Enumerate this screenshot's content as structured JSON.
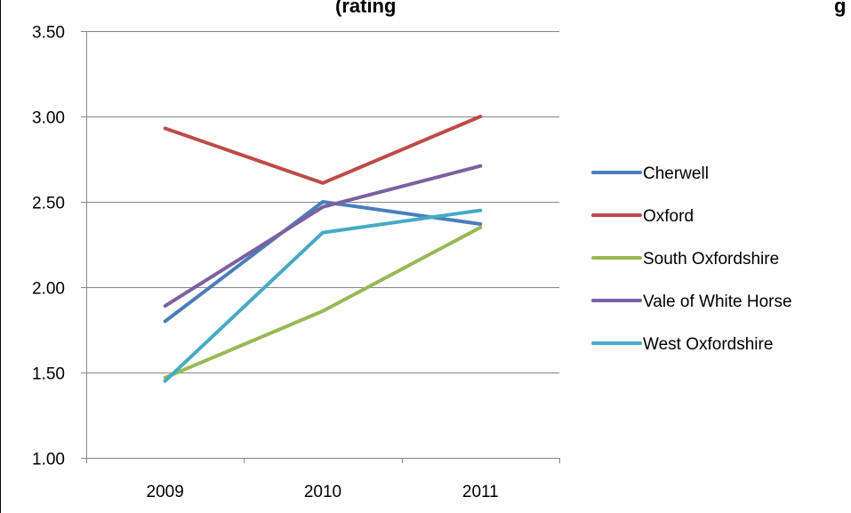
{
  "chart_data": {
    "type": "line",
    "title": "(rating",
    "title_partial": "",
    "title_tail": "g",
    "x": [
      "2009",
      "2010",
      "2011"
    ],
    "ylim": [
      1.0,
      3.5
    ],
    "yticks": [
      "1.00",
      "1.50",
      "2.00",
      "2.50",
      "3.00",
      "3.50"
    ],
    "ytick_values": [
      1.0,
      1.5,
      2.0,
      2.5,
      3.0,
      3.5
    ],
    "grid": true,
    "legend_position": "right",
    "series": [
      {
        "name": "Cherwell",
        "color": "#4A7EBB",
        "values": [
          1.8,
          2.5,
          2.37
        ]
      },
      {
        "name": "Oxford",
        "color": "#BE4B48",
        "values": [
          2.93,
          2.61,
          3.0
        ]
      },
      {
        "name": "South Oxfordshire",
        "color": "#98B954",
        "values": [
          1.47,
          1.86,
          2.35
        ]
      },
      {
        "name": "Vale of White Horse",
        "color": "#7D60A0",
        "values": [
          1.89,
          2.47,
          2.71
        ]
      },
      {
        "name": "West Oxfordshire",
        "color": "#46AAC5",
        "values": [
          1.45,
          2.32,
          2.45
        ]
      }
    ]
  }
}
